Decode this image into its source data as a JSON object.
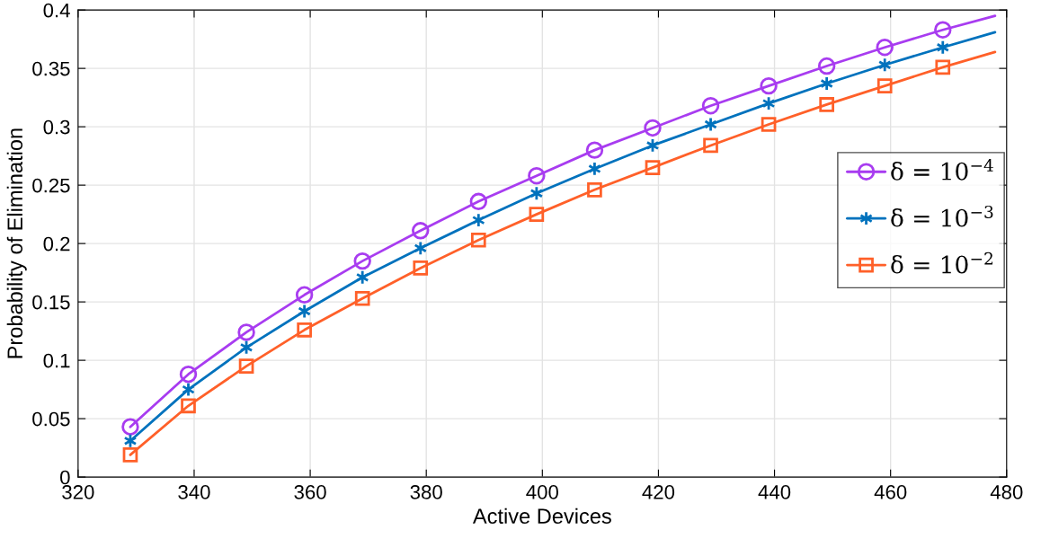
{
  "chart_data": {
    "type": "line",
    "xlabel": "Active Devices",
    "ylabel": "Probability of Elimination",
    "x": [
      329,
      339,
      349,
      359,
      369,
      379,
      389,
      399,
      409,
      419,
      429,
      439,
      449,
      459,
      469,
      478
    ],
    "series": [
      {
        "name": "δ = 10$^{−4}$",
        "color": "#a83cf0",
        "marker": "circle",
        "values": [
          0.043,
          0.088,
          0.124,
          0.156,
          0.185,
          0.211,
          0.236,
          0.258,
          0.28,
          0.299,
          0.318,
          0.335,
          0.352,
          0.368,
          0.383,
          0.395
        ]
      },
      {
        "name": "δ = 10$^{−3}$",
        "color": "#0072bd",
        "marker": "cross",
        "values": [
          0.031,
          0.075,
          0.111,
          0.142,
          0.171,
          0.196,
          0.22,
          0.243,
          0.264,
          0.284,
          0.302,
          0.32,
          0.337,
          0.353,
          0.368,
          0.381
        ]
      },
      {
        "name": "δ = 10$^{−2}$",
        "color": "#ff6029",
        "marker": "square",
        "values": [
          0.019,
          0.061,
          0.095,
          0.126,
          0.153,
          0.179,
          0.203,
          0.225,
          0.246,
          0.265,
          0.284,
          0.302,
          0.319,
          0.335,
          0.351,
          0.364
        ]
      }
    ],
    "xlim": [
      320,
      480
    ],
    "xticks": [
      320,
      340,
      360,
      380,
      400,
      420,
      440,
      460,
      480
    ],
    "ylim": [
      0,
      0.4
    ],
    "yticks": [
      0,
      0.05,
      0.1,
      0.15,
      0.2,
      0.25,
      0.3,
      0.35,
      0.4
    ],
    "grid": true,
    "legend": "right",
    "line_style": "solid"
  }
}
